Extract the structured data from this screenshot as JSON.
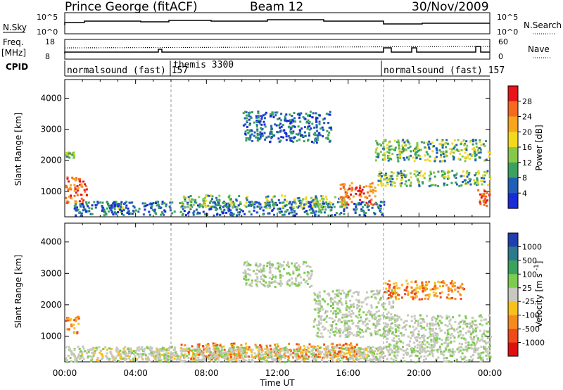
{
  "header": {
    "station": "Prince George (fitACF)",
    "beam": "Beam 12",
    "date": "30/Nov/2009"
  },
  "left_labels": {
    "nsky": "N.Sky",
    "freq": "Freq.",
    "freq_unit": "[MHz]",
    "cpid": "CPID"
  },
  "right_labels": {
    "nsearch": "N.Search",
    "nave": "Nave"
  },
  "ticks": {
    "nsky_left_top": "10^5",
    "nsky_left_bottom": "10^0",
    "nsky_right_top": "10^5",
    "nsky_right_bottom": "10^0",
    "freq_top": "18",
    "freq_bottom": "8",
    "nave_top": "60",
    "nave_bottom": "0"
  },
  "cpid_segments": [
    {
      "label": "normalsound (fast) 157",
      "start": 0.0,
      "end": 6.0
    },
    {
      "label": "themis 3300",
      "start": 6.0,
      "end": 18.0
    },
    {
      "label": "normalsound (fast) 157",
      "start": 18.0,
      "end": 24.0
    }
  ],
  "chart_data": [
    {
      "type": "heatmap",
      "title": "",
      "xlabel": "",
      "ylabel": "Slant Range [km]",
      "xlim": [
        0,
        24
      ],
      "ylim": [
        180,
        4600
      ],
      "x_ticks": [
        "00:00",
        "04:00",
        "08:00",
        "12:00",
        "16:00",
        "20:00",
        "00:00"
      ],
      "y_ticks": [
        "1000",
        "2000",
        "3000",
        "4000"
      ],
      "colorbar_label": "Power [dB]",
      "colorbar_ticks": [
        "28",
        "24",
        "20",
        "16",
        "12",
        "8",
        "4"
      ],
      "colorbar_colors": [
        "#e8141a",
        "#f56a1e",
        "#f7a51d",
        "#f2d91e",
        "#86c94a",
        "#3aa25e",
        "#1f5fb8",
        "#1a2bd8"
      ],
      "regions": [
        {
          "t0": 0.0,
          "t1": 1.2,
          "r0": 600,
          "r1": 1500,
          "level": "high"
        },
        {
          "t0": 0.0,
          "t1": 0.5,
          "r0": 2100,
          "r1": 2300,
          "level": "mid"
        },
        {
          "t0": 2.5,
          "t1": 3.3,
          "r0": 350,
          "r1": 600,
          "level": "mid"
        },
        {
          "t0": 0.5,
          "t1": 18.0,
          "r0": 250,
          "r1": 700,
          "level": "low"
        },
        {
          "t0": 6.5,
          "t1": 16.0,
          "r0": 500,
          "r1": 900,
          "level": "mid"
        },
        {
          "t0": 10.0,
          "t1": 15.0,
          "r0": 2600,
          "r1": 3600,
          "level": "low"
        },
        {
          "t0": 15.5,
          "t1": 17.5,
          "r0": 600,
          "r1": 1300,
          "level": "high"
        },
        {
          "t0": 17.5,
          "t1": 24.0,
          "r0": 2000,
          "r1": 2700,
          "level": "mid"
        },
        {
          "t0": 17.5,
          "t1": 24.0,
          "r0": 1200,
          "r1": 1700,
          "level": "mid"
        },
        {
          "t0": 23.2,
          "t1": 24.0,
          "r0": 500,
          "r1": 1100,
          "level": "high"
        }
      ]
    },
    {
      "type": "heatmap",
      "title": "",
      "xlabel": "Time UT",
      "ylabel": "Slant Range [km]",
      "xlim": [
        0,
        24
      ],
      "ylim": [
        180,
        4600
      ],
      "x_ticks": [
        "00:00",
        "04:00",
        "08:00",
        "12:00",
        "16:00",
        "20:00",
        "00:00"
      ],
      "y_ticks": [
        "1000",
        "2000",
        "3000",
        "4000"
      ],
      "colorbar_label": "Velocity [m s^-1]",
      "colorbar_ticks": [
        "1000",
        "500",
        "100",
        "25",
        "-25",
        "-100",
        "-500",
        "-1000"
      ],
      "colorbar_colors": [
        "#1f3fb0",
        "#2c7a8c",
        "#3aa25e",
        "#7dcc4e",
        "#c8c8c0",
        "#f7c01d",
        "#f58a1e",
        "#f04a1a",
        "#e01010"
      ],
      "regions": [
        {
          "t0": 0.0,
          "t1": 0.8,
          "r0": 1100,
          "r1": 1700,
          "level": "neg"
        },
        {
          "t0": 0.5,
          "t1": 18.0,
          "r0": 250,
          "r1": 650,
          "level": "neg_small"
        },
        {
          "t0": 6.5,
          "t1": 16.5,
          "r0": 300,
          "r1": 800,
          "level": "neg"
        },
        {
          "t0": 0.0,
          "t1": 24.0,
          "r0": 200,
          "r1": 700,
          "level": "zero"
        },
        {
          "t0": 10.0,
          "t1": 14.0,
          "r0": 2600,
          "r1": 3400,
          "level": "zero"
        },
        {
          "t0": 14.0,
          "t1": 18.5,
          "r0": 1000,
          "r1": 2500,
          "level": "zero"
        },
        {
          "t0": 18.0,
          "t1": 24.0,
          "r0": 500,
          "r1": 1700,
          "level": "zero"
        },
        {
          "t0": 18.0,
          "t1": 22.5,
          "r0": 2200,
          "r1": 2800,
          "level": "neg"
        }
      ]
    }
  ]
}
